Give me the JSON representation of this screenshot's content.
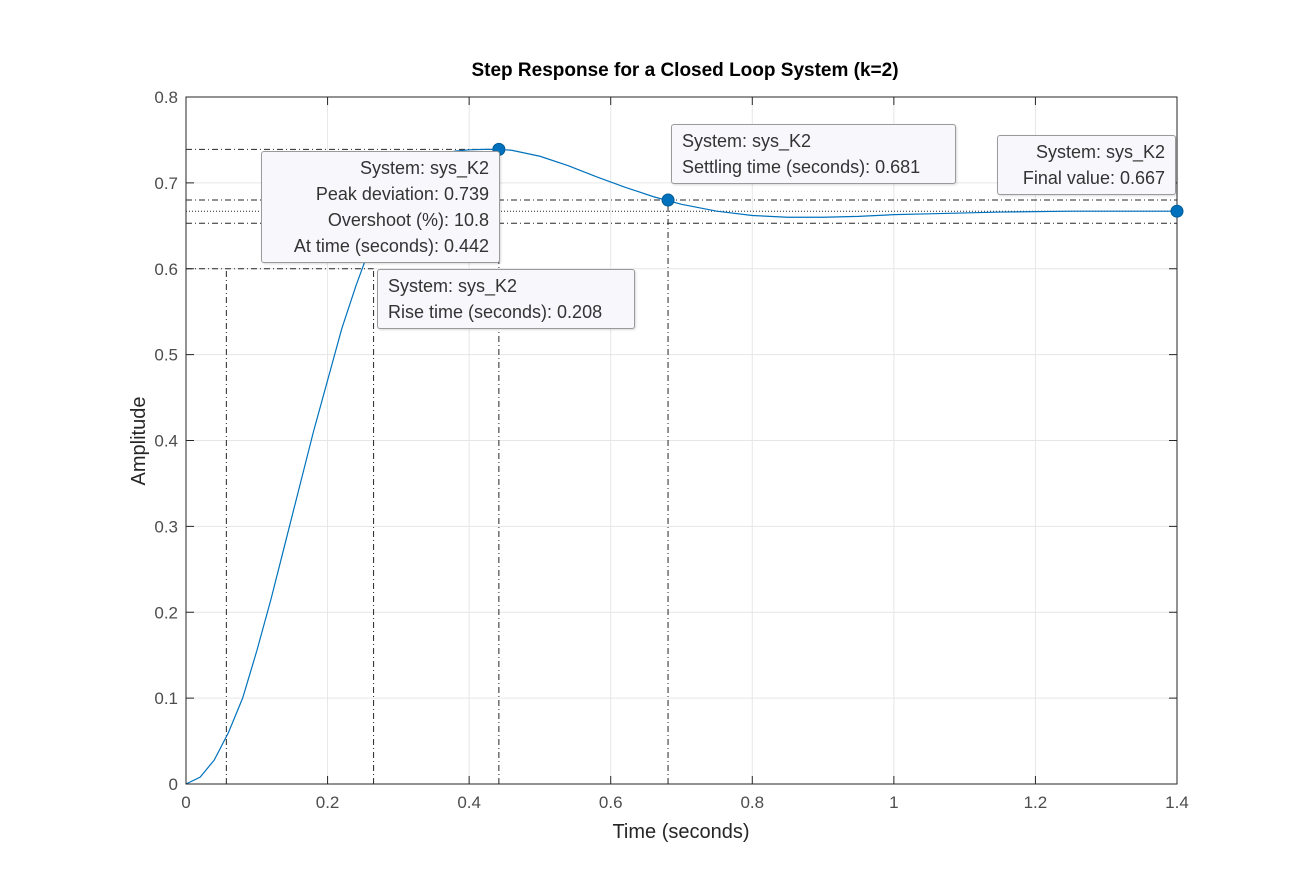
{
  "colors": {
    "line": "#0072bd",
    "grid": "#e6e6e6",
    "axis": "#262626",
    "marker_line": "#4d4d4d"
  },
  "chart_data": {
    "type": "line",
    "title": "Step Response for a Closed Loop System (k=2)",
    "xlabel": "Time (seconds)",
    "ylabel": "Amplitude",
    "xlim": [
      0,
      1.4
    ],
    "ylim": [
      0,
      0.8
    ],
    "xticks": [
      "0",
      "0.2",
      "0.4",
      "0.6",
      "0.8",
      "1",
      "1.2",
      "1.4"
    ],
    "yticks": [
      "0",
      "0.1",
      "0.2",
      "0.3",
      "0.4",
      "0.5",
      "0.6",
      "0.7",
      "0.8"
    ],
    "grid": true,
    "series": [
      {
        "name": "sys_K2",
        "x": [
          0,
          0.02,
          0.04,
          0.06,
          0.08,
          0.1,
          0.12,
          0.14,
          0.16,
          0.18,
          0.2,
          0.22,
          0.24,
          0.26,
          0.28,
          0.3,
          0.32,
          0.34,
          0.36,
          0.38,
          0.4,
          0.42,
          0.442,
          0.46,
          0.5,
          0.54,
          0.58,
          0.62,
          0.66,
          0.7,
          0.75,
          0.8,
          0.85,
          0.9,
          0.95,
          1.0,
          1.05,
          1.1,
          1.15,
          1.2,
          1.25,
          1.3,
          1.35,
          1.4
        ],
        "y": [
          0,
          0.008,
          0.028,
          0.06,
          0.1,
          0.155,
          0.215,
          0.28,
          0.345,
          0.41,
          0.47,
          0.53,
          0.58,
          0.625,
          0.66,
          0.69,
          0.71,
          0.724,
          0.732,
          0.737,
          0.7385,
          0.739,
          0.739,
          0.738,
          0.731,
          0.72,
          0.707,
          0.695,
          0.684,
          0.675,
          0.667,
          0.662,
          0.66,
          0.66,
          0.661,
          0.663,
          0.664,
          0.665,
          0.666,
          0.6665,
          0.667,
          0.667,
          0.667,
          0.667
        ]
      }
    ],
    "characteristics": {
      "final_value": 0.667,
      "rise_time_bounds": {
        "t_start": 0.057,
        "t_end": 0.265,
        "y_low": 0.0667,
        "y_high": 0.6
      },
      "peak": {
        "t": 0.442,
        "y": 0.739
      },
      "settling": {
        "t": 0.681,
        "y": 0.68,
        "band": [
          0.653,
          0.68
        ]
      },
      "final_marker": {
        "t": 1.4,
        "y": 0.667
      }
    }
  },
  "datatips": {
    "peak": {
      "line1": "System: sys_K2",
      "line2": "Peak deviation: 0.739",
      "line3": "Overshoot (%): 10.8",
      "line4": "At time (seconds): 0.442"
    },
    "rise": {
      "line1": "System: sys_K2",
      "line2": "Rise time (seconds): 0.208"
    },
    "settling": {
      "line1": "System: sys_K2",
      "line2": "Settling time (seconds): 0.681"
    },
    "final": {
      "line1": "System: sys_K2",
      "line2": "Final value: 0.667"
    }
  }
}
